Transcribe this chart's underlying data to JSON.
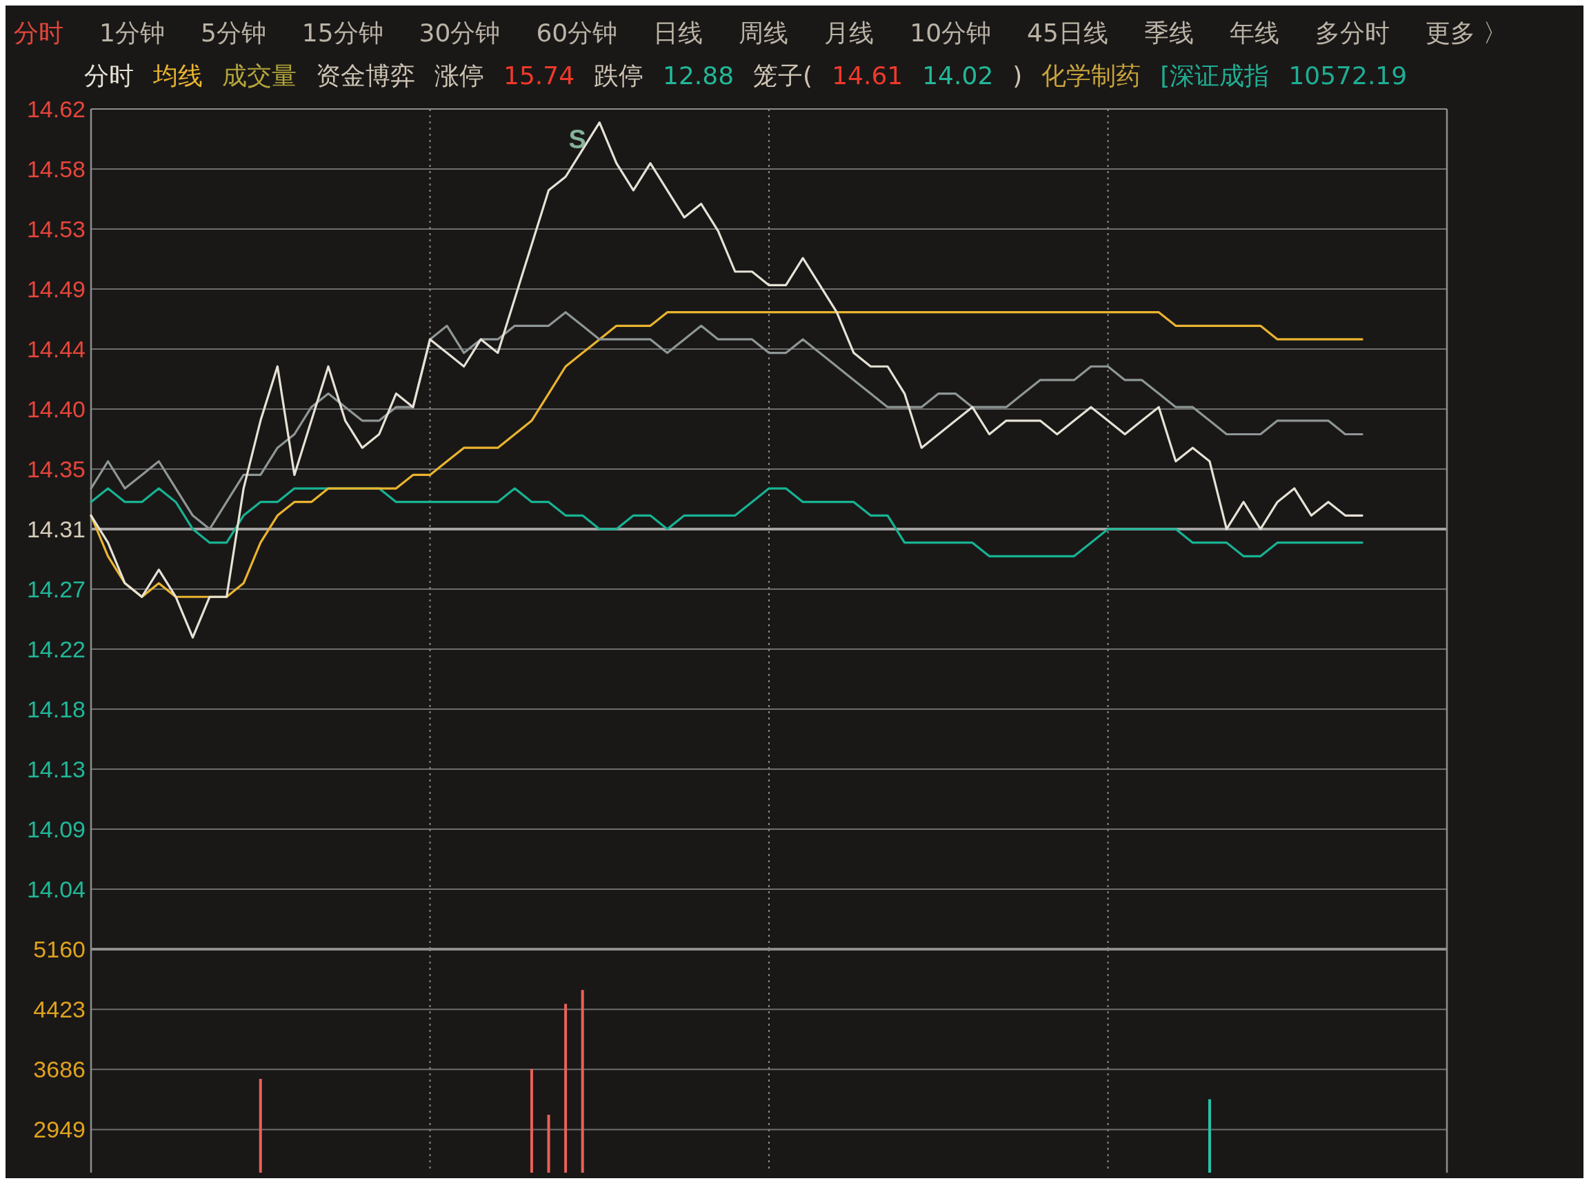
{
  "chart_data": [
    {
      "type": "line",
      "categories": [
        null,
        null,
        null,
        null,
        null,
        null,
        null,
        null,
        null,
        null,
        null,
        null,
        null,
        null,
        null,
        null,
        null,
        null,
        null,
        null,
        null,
        null,
        null,
        null,
        null,
        null,
        null,
        null,
        null,
        null,
        null,
        null,
        null,
        null,
        null,
        null,
        null,
        null,
        null,
        null,
        null,
        null,
        null,
        null,
        null,
        null,
        null,
        null,
        null,
        null,
        null,
        null,
        null,
        null,
        null,
        null,
        null,
        null,
        null,
        null,
        null,
        null,
        null,
        null,
        null,
        null,
        null,
        null,
        null,
        null,
        null,
        null,
        null,
        null,
        null,
        null,
        null,
        null,
        null,
        null,
        null
      ],
      "series": [
        {
          "name": "分时",
          "color": "#e6e2d6",
          "values": [
            14.32,
            14.3,
            14.27,
            14.26,
            14.28,
            14.26,
            14.23,
            14.26,
            14.26,
            14.34,
            14.39,
            14.43,
            14.35,
            14.39,
            14.43,
            14.39,
            14.37,
            14.38,
            14.41,
            14.4,
            14.45,
            14.44,
            14.43,
            14.45,
            14.44,
            14.48,
            14.52,
            14.56,
            14.57,
            14.59,
            14.61,
            14.58,
            14.56,
            14.58,
            14.56,
            14.54,
            14.55,
            14.53,
            14.5,
            14.5,
            14.49,
            14.49,
            14.51,
            14.49,
            14.47,
            14.44,
            14.43,
            14.43,
            14.41,
            14.37,
            14.38,
            14.39,
            14.4,
            14.38,
            14.39,
            14.39,
            14.39,
            14.38,
            14.39,
            14.4,
            14.39,
            14.38,
            14.39,
            14.4,
            14.36,
            14.37,
            14.36,
            14.31,
            14.33,
            14.31,
            14.33,
            14.34,
            14.32,
            14.33,
            14.32,
            14.32,
            null,
            null,
            null,
            null,
            null
          ]
        },
        {
          "color": "#8e9796",
          "values": [
            14.34,
            14.36,
            14.34,
            14.35,
            14.36,
            14.34,
            14.32,
            14.31,
            14.33,
            14.35,
            14.35,
            14.37,
            14.38,
            14.4,
            14.41,
            14.4,
            14.39,
            14.39,
            14.4,
            14.4,
            14.45,
            14.46,
            14.44,
            14.45,
            14.45,
            14.46,
            14.46,
            14.46,
            14.47,
            14.46,
            14.45,
            14.45,
            14.45,
            14.45,
            14.44,
            14.45,
            14.46,
            14.45,
            14.45,
            14.45,
            14.44,
            14.44,
            14.45,
            14.44,
            14.43,
            14.42,
            14.41,
            14.4,
            14.4,
            14.4,
            14.41,
            14.41,
            14.4,
            14.4,
            14.4,
            14.41,
            14.42,
            14.42,
            14.42,
            14.43,
            14.43,
            14.42,
            14.42,
            14.41,
            14.4,
            14.4,
            14.39,
            14.38,
            14.38,
            14.38,
            14.39,
            14.39,
            14.39,
            14.39,
            14.38,
            14.38,
            null,
            null,
            null,
            null,
            null
          ]
        },
        {
          "name": "均线",
          "color": "#eab42e",
          "values": [
            14.32,
            14.29,
            14.27,
            14.26,
            14.27,
            14.26,
            14.26,
            14.26,
            14.26,
            14.27,
            14.3,
            14.32,
            14.33,
            14.33,
            14.34,
            14.34,
            14.34,
            14.34,
            14.34,
            14.35,
            14.35,
            14.36,
            14.37,
            14.37,
            14.37,
            14.38,
            14.39,
            14.41,
            14.43,
            14.44,
            14.45,
            14.46,
            14.46,
            14.46,
            14.47,
            14.47,
            14.47,
            14.47,
            14.47,
            14.47,
            14.47,
            14.47,
            14.47,
            14.47,
            14.47,
            14.47,
            14.47,
            14.47,
            14.47,
            14.47,
            14.47,
            14.47,
            14.47,
            14.47,
            14.47,
            14.47,
            14.47,
            14.47,
            14.47,
            14.47,
            14.47,
            14.47,
            14.47,
            14.47,
            14.46,
            14.46,
            14.46,
            14.46,
            14.46,
            14.46,
            14.45,
            14.45,
            14.45,
            14.45,
            14.45,
            14.45,
            null,
            null,
            null,
            null,
            null
          ]
        },
        {
          "color": "#17b393",
          "values": [
            14.33,
            14.34,
            14.33,
            14.33,
            14.34,
            14.33,
            14.31,
            14.3,
            14.3,
            14.32,
            14.33,
            14.33,
            14.34,
            14.34,
            14.34,
            14.34,
            14.34,
            14.34,
            14.33,
            14.33,
            14.33,
            14.33,
            14.33,
            14.33,
            14.33,
            14.34,
            14.33,
            14.33,
            14.32,
            14.32,
            14.31,
            14.31,
            14.32,
            14.32,
            14.31,
            14.32,
            14.32,
            14.32,
            14.32,
            14.33,
            14.34,
            14.34,
            14.33,
            14.33,
            14.33,
            14.33,
            14.32,
            14.32,
            14.3,
            14.3,
            14.3,
            14.3,
            14.3,
            14.29,
            14.29,
            14.29,
            14.29,
            14.29,
            14.29,
            14.3,
            14.31,
            14.31,
            14.31,
            14.31,
            14.31,
            14.3,
            14.3,
            14.3,
            14.29,
            14.29,
            14.3,
            14.3,
            14.3,
            14.3,
            14.3,
            14.3,
            null,
            null,
            null,
            null,
            null
          ]
        }
      ],
      "ylim": [
        14.0,
        14.62
      ],
      "yticks": [
        {
          "value": 14.0443,
          "label": "14.04"
        },
        {
          "value": 14.0886,
          "label": "14.09"
        },
        {
          "value": 14.1329,
          "label": "14.13"
        },
        {
          "value": 14.1771,
          "label": "14.18"
        },
        {
          "value": 14.2214,
          "label": "14.22"
        },
        {
          "value": 14.2657,
          "label": "14.27"
        },
        14.31,
        {
          "value": 14.3543,
          "label": "14.35"
        },
        {
          "value": 14.3986,
          "label": "14.40"
        },
        {
          "value": 14.4429,
          "label": "14.44"
        },
        {
          "value": 14.4871,
          "label": "14.49"
        },
        {
          "value": 14.5314,
          "label": "14.53"
        },
        {
          "value": 14.5757,
          "label": "14.58"
        },
        14.62
      ],
      "ref_lines": [
        {
          "axis": "y",
          "value": 14.31
        }
      ],
      "grid": true,
      "legend": "top left",
      "tick_labels": "y",
      "annotations": [
        "分时",
        "1分钟",
        "5分钟",
        "15分钟",
        "30分钟",
        "60分钟",
        "日线",
        "周线",
        "月线",
        "10分钟",
        "45日线",
        "季线",
        "年线",
        "多分时",
        "更多 〉",
        "成交量",
        "资金博弈",
        "涨停",
        "15.74",
        "跌停",
        "12.88",
        "笼子(",
        "14.61",
        "14.02",
        ")",
        "化学制药",
        "[深证成指",
        "10572.19",
        "S"
      ]
    },
    {
      "type": "bar",
      "categories": [
        null,
        null,
        null,
        null,
        null,
        null,
        null,
        null,
        null,
        null,
        null,
        null,
        null,
        null,
        null,
        null,
        null,
        null,
        null,
        null,
        null,
        null,
        null,
        null,
        null,
        null,
        null,
        null,
        null,
        null,
        null,
        null,
        null,
        null,
        null,
        null,
        null,
        null,
        null,
        null,
        null,
        null,
        null,
        null,
        null,
        null,
        null,
        null,
        null,
        null,
        null,
        null,
        null,
        null,
        null,
        null,
        null,
        null,
        null,
        null,
        null,
        null,
        null,
        null,
        null,
        null,
        null,
        null,
        null,
        null,
        null,
        null,
        null,
        null,
        null,
        null,
        null,
        null,
        null,
        null,
        null
      ],
      "values": [
        null,
        null,
        null,
        null,
        null,
        null,
        null,
        null,
        null,
        null,
        3570,
        null,
        null,
        null,
        null,
        null,
        null,
        null,
        null,
        null,
        null,
        null,
        null,
        null,
        null,
        null,
        3690,
        3130,
        4490,
        4660,
        null,
        null,
        null,
        null,
        null,
        null,
        null,
        null,
        null,
        null,
        null,
        null,
        null,
        null,
        null,
        null,
        null,
        null,
        null,
        null,
        null,
        null,
        null,
        null,
        null,
        null,
        null,
        null,
        null,
        null,
        null,
        null,
        null,
        null,
        null,
        null,
        3320,
        null,
        null,
        null,
        null,
        null,
        null,
        null,
        null,
        null,
        null,
        null,
        null,
        null,
        null
      ],
      "colors": [
        null,
        null,
        null,
        null,
        null,
        null,
        null,
        null,
        null,
        null,
        "#e8625a",
        null,
        null,
        null,
        null,
        null,
        null,
        null,
        null,
        null,
        null,
        null,
        null,
        null,
        null,
        null,
        "#e8625a",
        "#e8625a",
        "#e8625a",
        "#e8625a",
        null,
        null,
        null,
        null,
        null,
        null,
        null,
        null,
        null,
        null,
        null,
        null,
        null,
        null,
        null,
        null,
        null,
        null,
        null,
        null,
        null,
        null,
        null,
        null,
        null,
        null,
        null,
        null,
        null,
        null,
        null,
        null,
        null,
        null,
        null,
        null,
        "#26c4aa",
        null,
        null,
        null,
        null,
        null,
        null,
        null,
        null,
        null,
        null,
        null,
        null,
        null,
        null
      ],
      "ylim": [
        2420,
        5160
      ],
      "yticks": [
        2949,
        3686,
        4423,
        5160
      ],
      "grid": true,
      "tick_labels": "y"
    }
  ]
}
